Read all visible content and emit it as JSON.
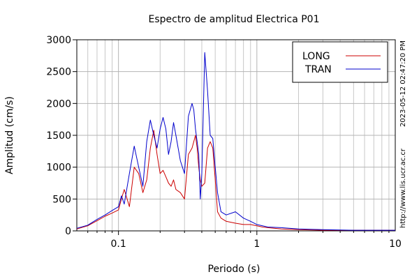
{
  "chart_data": {
    "type": "line",
    "title": "Espectro de amplitud Electrica P01",
    "xlabel": "Periodo (s)",
    "ylabel": "Amplitud (cm/s)",
    "xscale": "log",
    "xlim": [
      0.05,
      10
    ],
    "ylim": [
      0,
      3000
    ],
    "x_tick_labels": [
      "0.1",
      "1",
      "10"
    ],
    "x_ticks": [
      0.1,
      1,
      10
    ],
    "y_tick_labels": [
      "0",
      "500",
      "1000",
      "1500",
      "2000",
      "2500",
      "3000"
    ],
    "y_ticks": [
      0,
      500,
      1000,
      1500,
      2000,
      2500,
      3000
    ],
    "grid": true,
    "legend_position": "top-right",
    "timestamp": "2023-05-12 02:47:20 PM",
    "source_url": "http://www.lis.ucr.ac.cr",
    "series": [
      {
        "name": "LONG",
        "color": "#cc0000",
        "x": [
          0.05,
          0.06,
          0.07,
          0.08,
          0.09,
          0.1,
          0.105,
          0.11,
          0.12,
          0.13,
          0.14,
          0.15,
          0.16,
          0.17,
          0.18,
          0.19,
          0.2,
          0.21,
          0.22,
          0.23,
          0.24,
          0.25,
          0.26,
          0.28,
          0.3,
          0.32,
          0.34,
          0.35,
          0.36,
          0.37,
          0.38,
          0.39,
          0.4,
          0.42,
          0.44,
          0.46,
          0.48,
          0.5,
          0.52,
          0.55,
          0.6,
          0.7,
          0.8,
          0.9,
          1.0,
          1.1,
          1.2,
          1.5,
          2.0,
          3.0,
          5.0,
          8.0,
          10.0
        ],
        "y": [
          30,
          80,
          160,
          230,
          280,
          330,
          500,
          650,
          380,
          1000,
          900,
          600,
          800,
          1300,
          1580,
          1200,
          900,
          950,
          850,
          750,
          700,
          800,
          650,
          600,
          500,
          1200,
          1300,
          1400,
          1500,
          1300,
          1000,
          800,
          700,
          750,
          1300,
          1400,
          1300,
          800,
          300,
          200,
          150,
          120,
          100,
          100,
          80,
          60,
          50,
          30,
          20,
          10,
          10,
          10,
          10
        ]
      },
      {
        "name": "TRAN",
        "color": "#0000cc",
        "x": [
          0.05,
          0.06,
          0.07,
          0.08,
          0.09,
          0.1,
          0.105,
          0.11,
          0.12,
          0.13,
          0.14,
          0.15,
          0.16,
          0.17,
          0.18,
          0.19,
          0.2,
          0.21,
          0.22,
          0.23,
          0.24,
          0.25,
          0.26,
          0.28,
          0.3,
          0.32,
          0.34,
          0.35,
          0.36,
          0.37,
          0.38,
          0.39,
          0.4,
          0.42,
          0.44,
          0.46,
          0.48,
          0.5,
          0.52,
          0.55,
          0.6,
          0.7,
          0.8,
          0.9,
          1.0,
          1.1,
          1.2,
          1.5,
          2.0,
          3.0,
          5.0,
          8.0,
          10.0
        ],
        "y": [
          40,
          90,
          180,
          250,
          320,
          380,
          550,
          420,
          900,
          1330,
          1000,
          700,
          1400,
          1740,
          1500,
          1300,
          1600,
          1780,
          1600,
          1200,
          1400,
          1700,
          1500,
          1100,
          900,
          1800,
          2000,
          1900,
          1600,
          1400,
          1200,
          500,
          900,
          2800,
          2200,
          1500,
          1450,
          1000,
          600,
          300,
          250,
          300,
          200,
          150,
          100,
          80,
          60,
          50,
          30,
          20,
          10,
          10,
          10
        ]
      }
    ]
  }
}
